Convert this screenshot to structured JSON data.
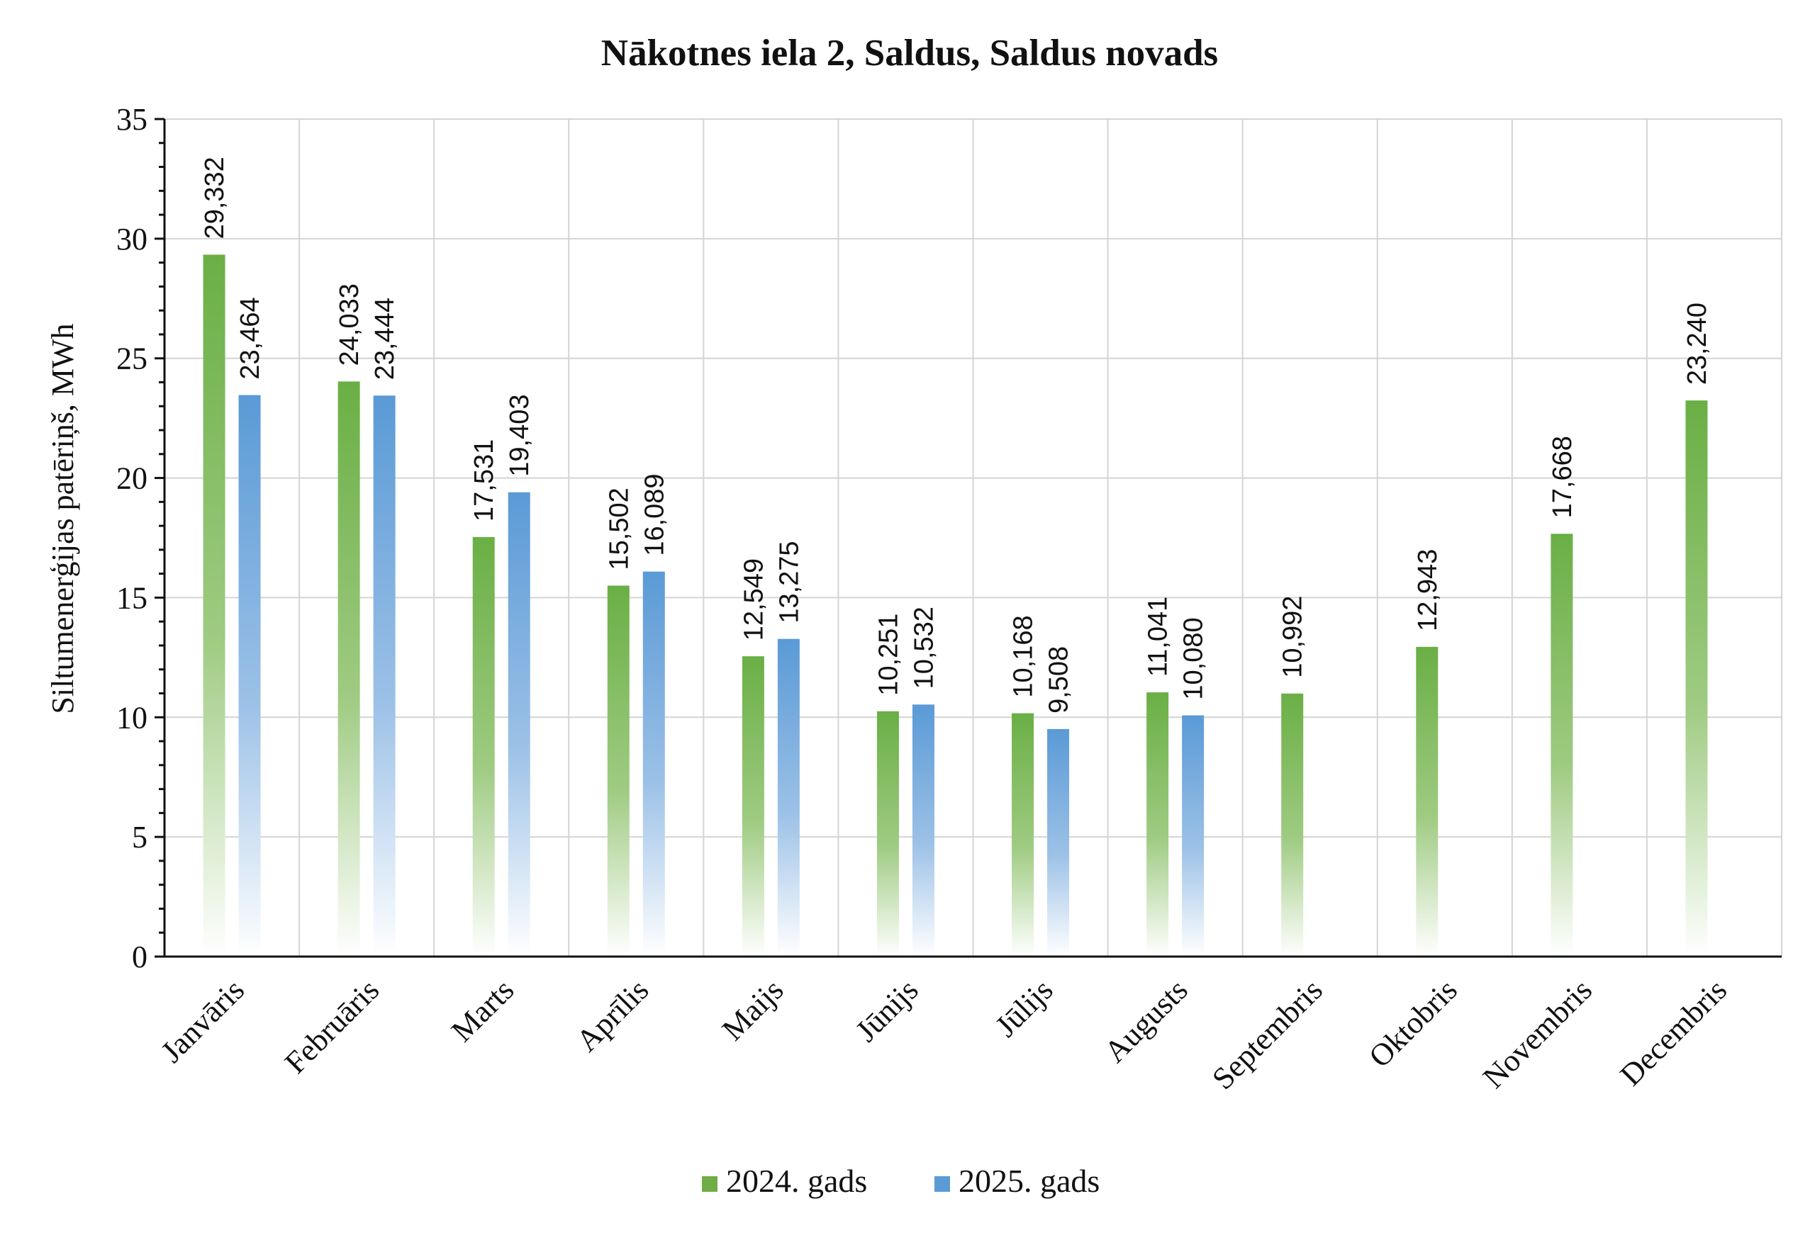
{
  "chart_data": {
    "type": "bar",
    "title": "Nākotnes iela 2, Saldus, Saldus novads",
    "ylabel": "Siltumenerģijas patēriņš, MWh",
    "xlabel": "",
    "ylim": [
      0,
      35
    ],
    "yticks": [
      0,
      5,
      10,
      15,
      20,
      25,
      30,
      35
    ],
    "grid": true,
    "legend_position": "bottom",
    "categories": [
      "Janvāris",
      "Februāris",
      "Marts",
      "Aprīlis",
      "Maijs",
      "Jūnijs",
      "Jūlijs",
      "Augusts",
      "Septembris",
      "Oktobris",
      "Novembris",
      "Decembris"
    ],
    "series": [
      {
        "name": "2024. gads",
        "color": "#70ad47",
        "values": [
          29.332,
          24.033,
          17.531,
          15.502,
          12.549,
          10.251,
          10.168,
          11.041,
          10.992,
          12.943,
          17.668,
          23.24
        ],
        "labels": [
          "29,332",
          "24,033",
          "17,531",
          "15,502",
          "12,549",
          "10,251",
          "10,168",
          "11,041",
          "10,992",
          "12,943",
          "17,668",
          "23,240"
        ]
      },
      {
        "name": "2025. gads",
        "color": "#5b9bd5",
        "values": [
          23.464,
          23.444,
          19.403,
          16.089,
          13.275,
          10.532,
          9.508,
          10.08,
          null,
          null,
          null,
          null
        ],
        "labels": [
          "23,464",
          "23,444",
          "19,403",
          "16,089",
          "13,275",
          "10,532",
          "9,508",
          "10,080",
          null,
          null,
          null,
          null
        ]
      }
    ]
  }
}
